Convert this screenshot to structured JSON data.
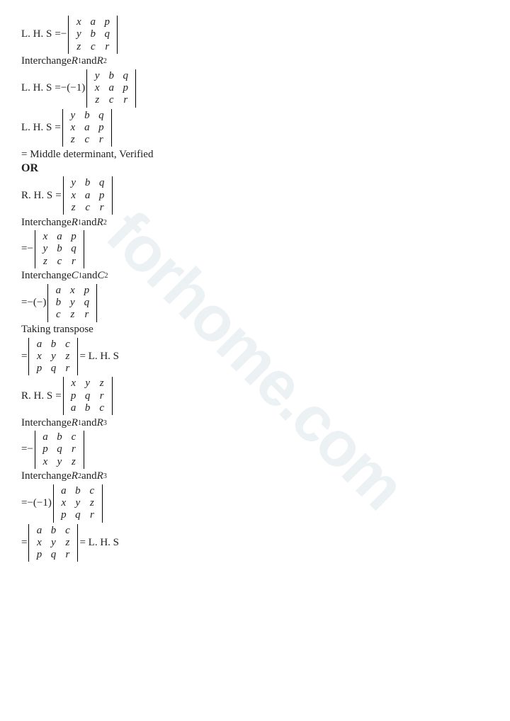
{
  "watermark": "forhome.com",
  "lines": {
    "lhs": "L. H. S",
    "rhs": "R. H. S",
    "eq": "=",
    "neg": "−",
    "negone": "−(−1)",
    "negneg": "−(−)",
    "interR12": "Interchange R₁ and R₂",
    "interR13": "Interchange R₁ and R₃",
    "interR23": "Interchange R₂ and R₃",
    "interC12": "Interchange C₁ and C₂",
    "transpose": "Taking transpose",
    "middle": "= Middle determinant, Verified",
    "or": "OR",
    "eqlhs": "= L. H. S"
  },
  "mats": {
    "xap": [
      [
        "x",
        "a",
        "p"
      ],
      [
        "y",
        "b",
        "q"
      ],
      [
        "z",
        "c",
        "r"
      ]
    ],
    "ybq": [
      [
        "y",
        "b",
        "q"
      ],
      [
        "x",
        "a",
        "p"
      ],
      [
        "z",
        "c",
        "r"
      ]
    ],
    "axp": [
      [
        "a",
        "x",
        "p"
      ],
      [
        "b",
        "y",
        "q"
      ],
      [
        "c",
        "z",
        "r"
      ]
    ],
    "abc": [
      [
        "a",
        "b",
        "c"
      ],
      [
        "x",
        "y",
        "z"
      ],
      [
        "p",
        "q",
        "r"
      ]
    ],
    "xyz": [
      [
        "x",
        "y",
        "z"
      ],
      [
        "p",
        "q",
        "r"
      ],
      [
        "a",
        "b",
        "c"
      ]
    ],
    "abcpqr": [
      [
        "a",
        "b",
        "c"
      ],
      [
        "p",
        "q",
        "r"
      ],
      [
        "x",
        "y",
        "z"
      ]
    ],
    "abcxyz": [
      [
        "a",
        "b",
        "c"
      ],
      [
        "x",
        "y",
        "z"
      ],
      [
        "p",
        "q",
        "r"
      ]
    ]
  }
}
